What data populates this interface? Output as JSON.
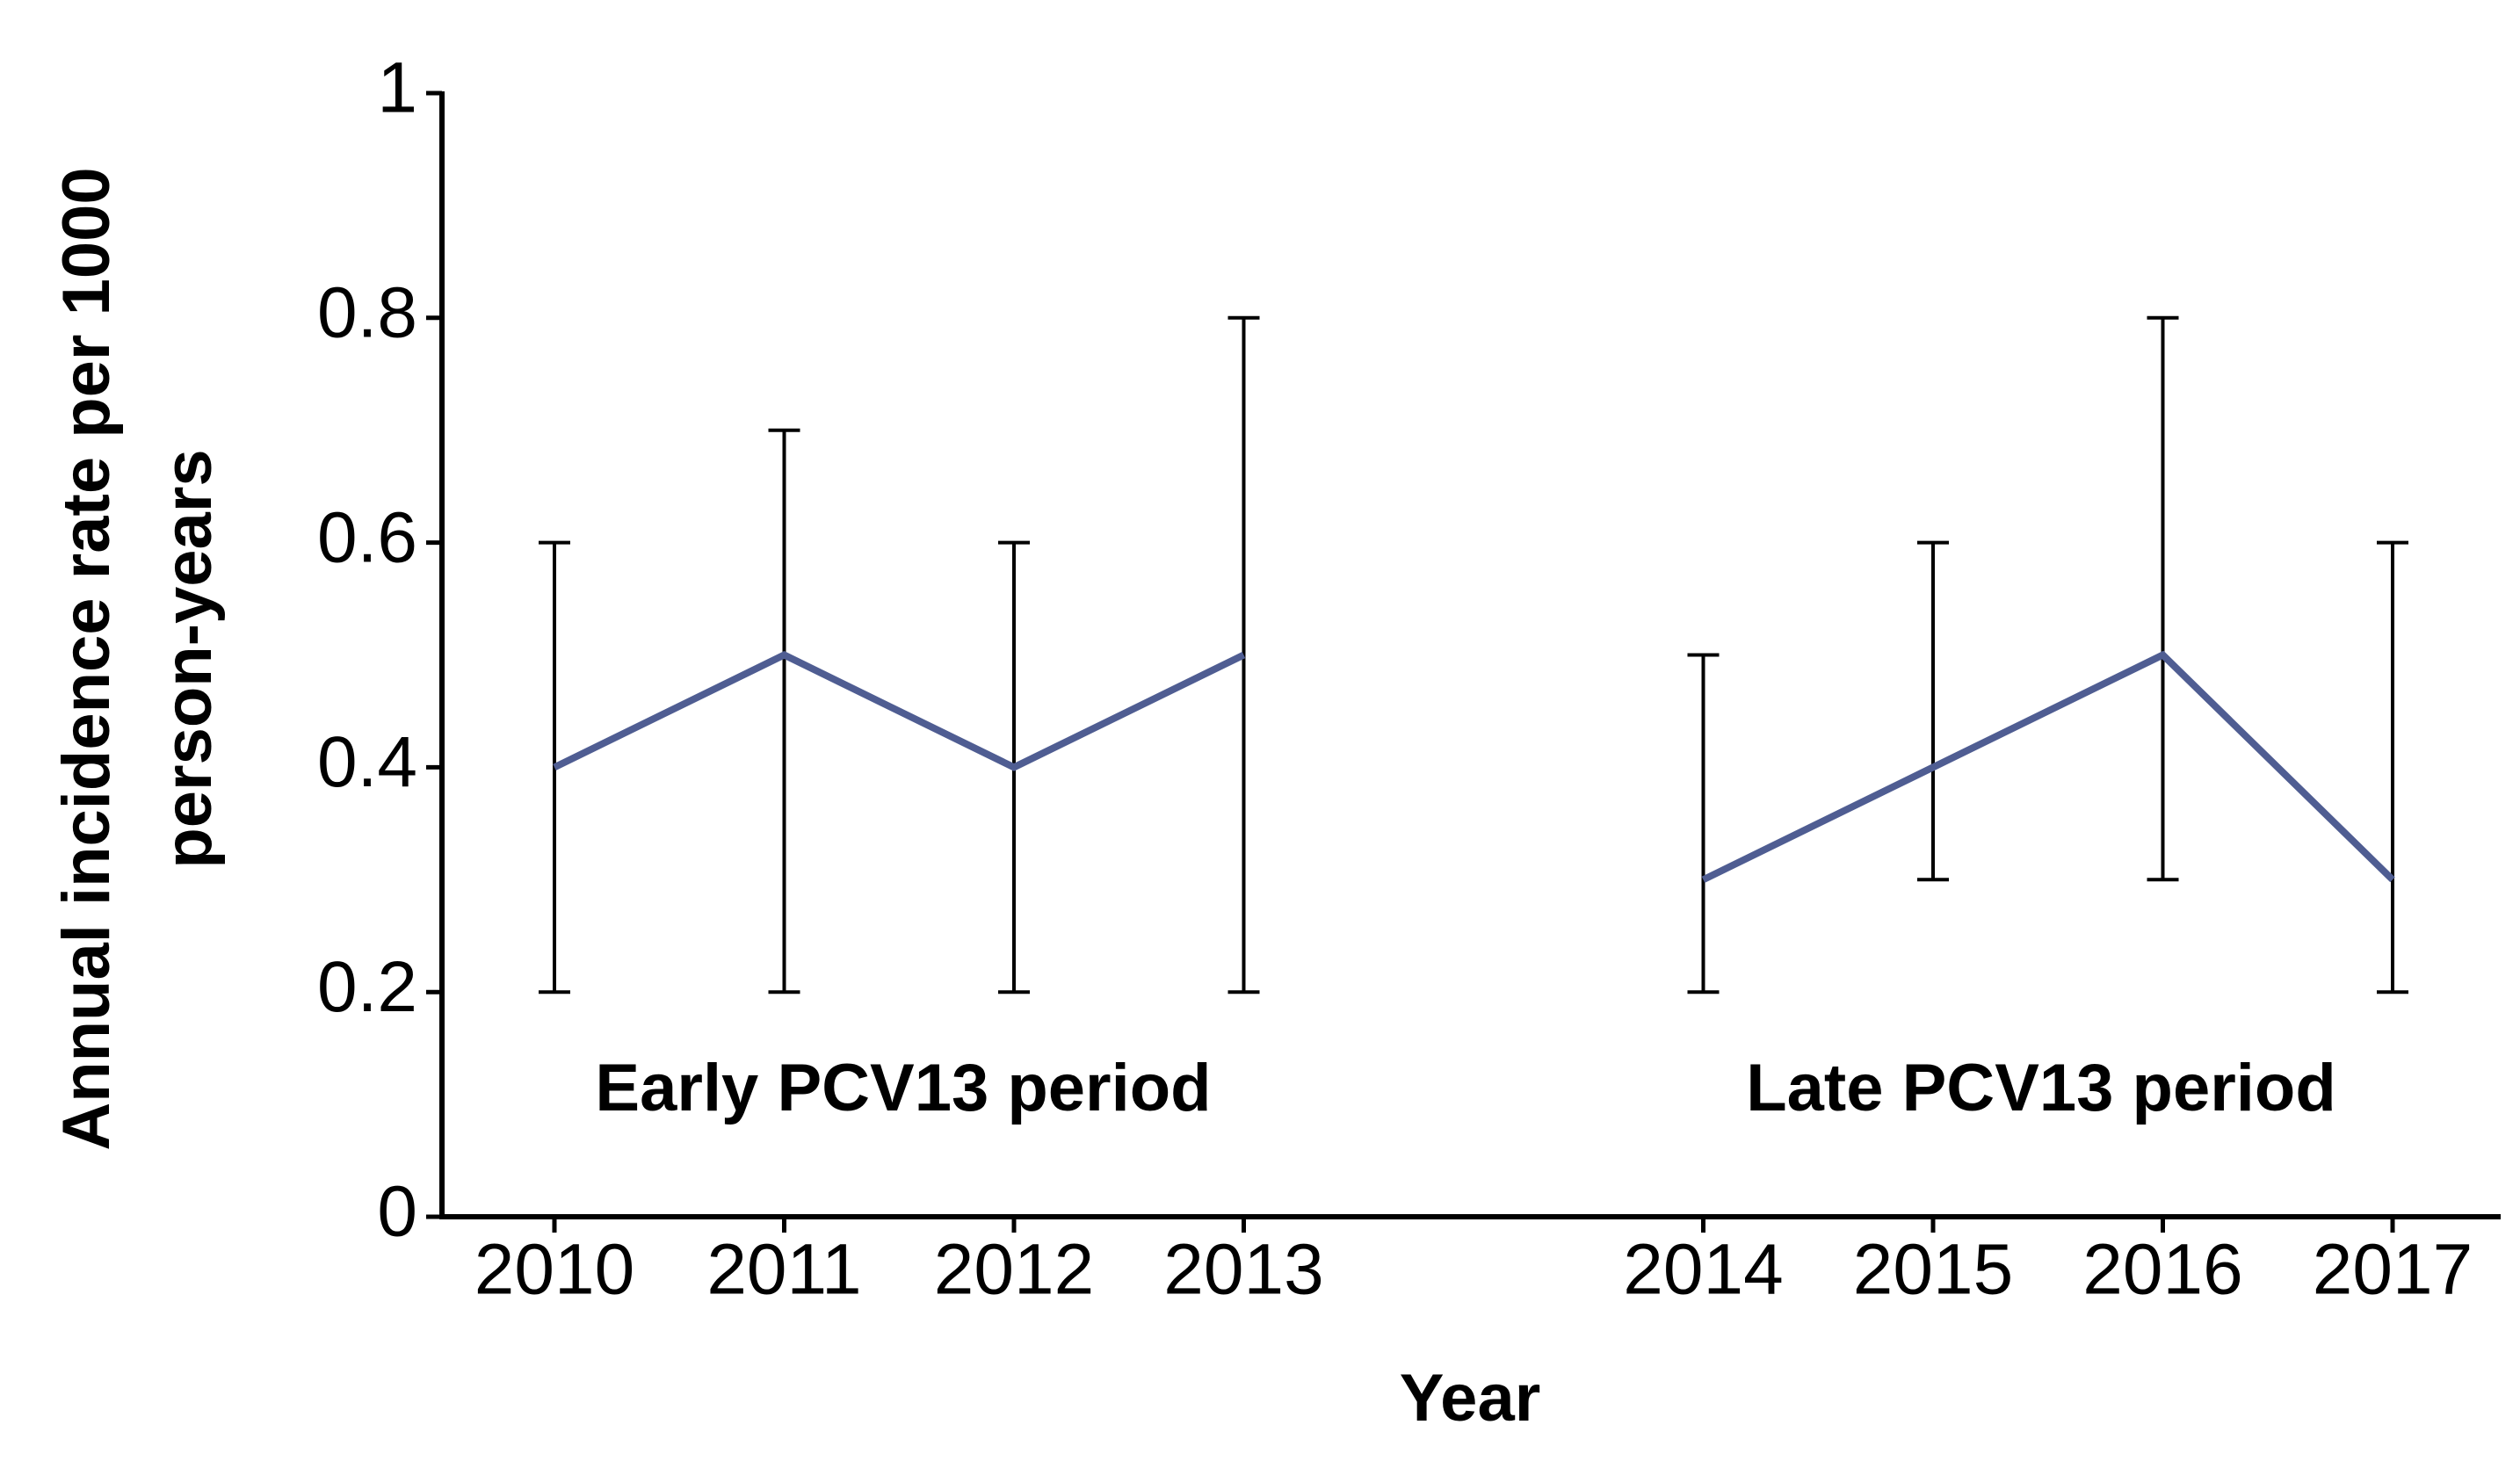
{
  "chart_data": {
    "type": "line",
    "categories": [
      "2010",
      "2011",
      "2012",
      "2013",
      null,
      "2014",
      "2015",
      "2016",
      "2017"
    ],
    "values": [
      0.4,
      0.5,
      0.4,
      0.5,
      null,
      0.3,
      0.4,
      0.5,
      0.3
    ],
    "lower": [
      0.2,
      0.2,
      0.2,
      0.2,
      null,
      0.2,
      0.3,
      0.3,
      0.2
    ],
    "upper": [
      0.6,
      0.7,
      0.6,
      0.8,
      null,
      0.5,
      0.6,
      0.8,
      0.6
    ],
    "color": "#4f5d92",
    "ylim": [
      0,
      1
    ],
    "yticks": [
      0,
      0.2,
      0.4,
      0.6,
      0.8,
      1
    ],
    "xlabel": "Year",
    "ylabel": [
      "Annual incidence rate per 1000",
      "person-years"
    ],
    "annotations": [
      "Early PCV13 period",
      "Late PCV13 period"
    ]
  }
}
